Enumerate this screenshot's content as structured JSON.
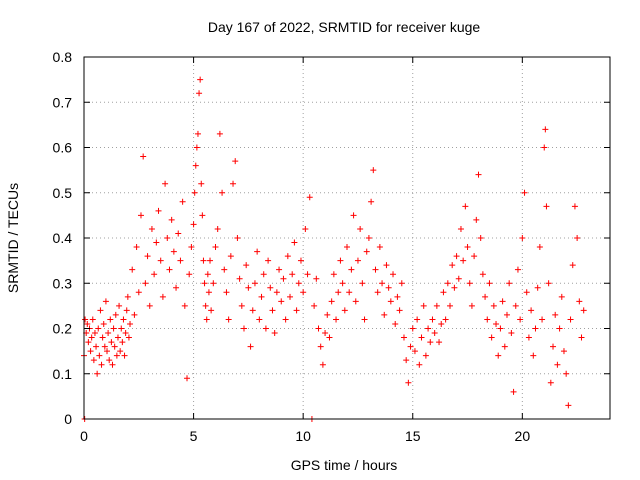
{
  "chart_data": {
    "type": "scatter",
    "title": "Day 167 of 2022, SRMTID for receiver kuge",
    "xlabel": "GPS time / hours",
    "ylabel": "SRMTID / TECUs",
    "xlim": [
      0,
      24
    ],
    "ylim": [
      0,
      0.8
    ],
    "xticks": [
      0,
      5,
      10,
      15,
      20
    ],
    "xtick_labels": [
      "0",
      "5",
      "10",
      "15",
      "20"
    ],
    "yticks": [
      0,
      0.1,
      0.2,
      0.3,
      0.4,
      0.5,
      0.6,
      0.7,
      0.8
    ],
    "ytick_labels": [
      "0",
      "0.1",
      "0.2",
      "0.3",
      "0.4",
      "0.5",
      "0.6",
      "0.7",
      "0.8"
    ],
    "grid": true,
    "marker": "+",
    "color": "#ff0000",
    "series": [
      {
        "name": "SRMTID",
        "points": [
          [
            0.0,
            0.14
          ],
          [
            0.03,
            0.0
          ],
          [
            0.05,
            0.22
          ],
          [
            0.1,
            0.19
          ],
          [
            0.15,
            0.21
          ],
          [
            0.2,
            0.17
          ],
          [
            0.25,
            0.2
          ],
          [
            0.3,
            0.15
          ],
          [
            0.35,
            0.18
          ],
          [
            0.4,
            0.22
          ],
          [
            0.45,
            0.13
          ],
          [
            0.5,
            0.19
          ],
          [
            0.55,
            0.16
          ],
          [
            0.6,
            0.1
          ],
          [
            0.65,
            0.2
          ],
          [
            0.7,
            0.14
          ],
          [
            0.75,
            0.24
          ],
          [
            0.8,
            0.12
          ],
          [
            0.85,
            0.18
          ],
          [
            0.9,
            0.21
          ],
          [
            0.95,
            0.16
          ],
          [
            1.0,
            0.26
          ],
          [
            1.05,
            0.15
          ],
          [
            1.1,
            0.19
          ],
          [
            1.15,
            0.13
          ],
          [
            1.2,
            0.22
          ],
          [
            1.25,
            0.17
          ],
          [
            1.3,
            0.12
          ],
          [
            1.35,
            0.2
          ],
          [
            1.4,
            0.16
          ],
          [
            1.45,
            0.23
          ],
          [
            1.5,
            0.14
          ],
          [
            1.55,
            0.18
          ],
          [
            1.6,
            0.25
          ],
          [
            1.65,
            0.15
          ],
          [
            1.7,
            0.2
          ],
          [
            1.75,
            0.17
          ],
          [
            1.8,
            0.22
          ],
          [
            1.85,
            0.14
          ],
          [
            1.9,
            0.19
          ],
          [
            1.95,
            0.24
          ],
          [
            2.0,
            0.27
          ],
          [
            2.05,
            0.18
          ],
          [
            2.1,
            0.21
          ],
          [
            2.2,
            0.33
          ],
          [
            2.3,
            0.23
          ],
          [
            2.4,
            0.38
          ],
          [
            2.5,
            0.28
          ],
          [
            2.6,
            0.45
          ],
          [
            2.7,
            0.58
          ],
          [
            2.8,
            0.3
          ],
          [
            2.9,
            0.36
          ],
          [
            3.0,
            0.25
          ],
          [
            3.1,
            0.42
          ],
          [
            3.2,
            0.32
          ],
          [
            3.3,
            0.39
          ],
          [
            3.4,
            0.46
          ],
          [
            3.5,
            0.35
          ],
          [
            3.6,
            0.27
          ],
          [
            3.7,
            0.52
          ],
          [
            3.8,
            0.4
          ],
          [
            3.9,
            0.33
          ],
          [
            4.0,
            0.44
          ],
          [
            4.1,
            0.37
          ],
          [
            4.2,
            0.29
          ],
          [
            4.3,
            0.41
          ],
          [
            4.4,
            0.35
          ],
          [
            4.5,
            0.48
          ],
          [
            4.6,
            0.25
          ],
          [
            4.7,
            0.09
          ],
          [
            4.8,
            0.32
          ],
          [
            4.9,
            0.38
          ],
          [
            5.0,
            0.43
          ],
          [
            5.05,
            0.5
          ],
          [
            5.1,
            0.56
          ],
          [
            5.15,
            0.6
          ],
          [
            5.2,
            0.63
          ],
          [
            5.25,
            0.72
          ],
          [
            5.3,
            0.75
          ],
          [
            5.35,
            0.52
          ],
          [
            5.4,
            0.45
          ],
          [
            5.45,
            0.35
          ],
          [
            5.5,
            0.3
          ],
          [
            5.55,
            0.25
          ],
          [
            5.6,
            0.22
          ],
          [
            5.65,
            0.32
          ],
          [
            5.7,
            0.28
          ],
          [
            5.75,
            0.35
          ],
          [
            5.8,
            0.24
          ],
          [
            5.9,
            0.3
          ],
          [
            6.0,
            0.38
          ],
          [
            6.1,
            0.42
          ],
          [
            6.2,
            0.63
          ],
          [
            6.3,
            0.5
          ],
          [
            6.4,
            0.33
          ],
          [
            6.5,
            0.28
          ],
          [
            6.6,
            0.22
          ],
          [
            6.7,
            0.36
          ],
          [
            6.8,
            0.52
          ],
          [
            6.9,
            0.57
          ],
          [
            7.0,
            0.4
          ],
          [
            7.1,
            0.31
          ],
          [
            7.2,
            0.25
          ],
          [
            7.3,
            0.2
          ],
          [
            7.4,
            0.34
          ],
          [
            7.5,
            0.29
          ],
          [
            7.6,
            0.16
          ],
          [
            7.7,
            0.24
          ],
          [
            7.8,
            0.3
          ],
          [
            7.9,
            0.37
          ],
          [
            8.0,
            0.22
          ],
          [
            8.1,
            0.27
          ],
          [
            8.2,
            0.32
          ],
          [
            8.3,
            0.2
          ],
          [
            8.4,
            0.35
          ],
          [
            8.5,
            0.29
          ],
          [
            8.6,
            0.24
          ],
          [
            8.7,
            0.19
          ],
          [
            8.8,
            0.28
          ],
          [
            8.9,
            0.33
          ],
          [
            9.0,
            0.26
          ],
          [
            9.1,
            0.31
          ],
          [
            9.2,
            0.22
          ],
          [
            9.3,
            0.36
          ],
          [
            9.4,
            0.27
          ],
          [
            9.5,
            0.32
          ],
          [
            9.6,
            0.39
          ],
          [
            9.7,
            0.24
          ],
          [
            9.8,
            0.3
          ],
          [
            9.9,
            0.35
          ],
          [
            10.0,
            0.28
          ],
          [
            10.1,
            0.42
          ],
          [
            10.2,
            0.32
          ],
          [
            10.3,
            0.49
          ],
          [
            10.4,
            0.0
          ],
          [
            10.5,
            0.25
          ],
          [
            10.6,
            0.31
          ],
          [
            10.7,
            0.2
          ],
          [
            10.8,
            0.16
          ],
          [
            10.9,
            0.12
          ],
          [
            11.0,
            0.19
          ],
          [
            11.1,
            0.23
          ],
          [
            11.2,
            0.18
          ],
          [
            11.3,
            0.26
          ],
          [
            11.4,
            0.32
          ],
          [
            11.5,
            0.22
          ],
          [
            11.6,
            0.28
          ],
          [
            11.7,
            0.35
          ],
          [
            11.8,
            0.3
          ],
          [
            11.9,
            0.24
          ],
          [
            12.0,
            0.38
          ],
          [
            12.1,
            0.28
          ],
          [
            12.2,
            0.33
          ],
          [
            12.3,
            0.45
          ],
          [
            12.4,
            0.26
          ],
          [
            12.5,
            0.35
          ],
          [
            12.6,
            0.42
          ],
          [
            12.7,
            0.3
          ],
          [
            12.8,
            0.22
          ],
          [
            12.9,
            0.37
          ],
          [
            13.0,
            0.4
          ],
          [
            13.1,
            0.48
          ],
          [
            13.2,
            0.55
          ],
          [
            13.3,
            0.33
          ],
          [
            13.4,
            0.28
          ],
          [
            13.5,
            0.38
          ],
          [
            13.6,
            0.3
          ],
          [
            13.7,
            0.23
          ],
          [
            13.8,
            0.34
          ],
          [
            13.9,
            0.29
          ],
          [
            14.0,
            0.26
          ],
          [
            14.1,
            0.32
          ],
          [
            14.2,
            0.21
          ],
          [
            14.3,
            0.27
          ],
          [
            14.4,
            0.24
          ],
          [
            14.5,
            0.3
          ],
          [
            14.6,
            0.18
          ],
          [
            14.7,
            0.13
          ],
          [
            14.8,
            0.08
          ],
          [
            14.9,
            0.16
          ],
          [
            15.0,
            0.2
          ],
          [
            15.1,
            0.15
          ],
          [
            15.2,
            0.22
          ],
          [
            15.3,
            0.12
          ],
          [
            15.4,
            0.18
          ],
          [
            15.5,
            0.25
          ],
          [
            15.6,
            0.14
          ],
          [
            15.7,
            0.2
          ],
          [
            15.8,
            0.17
          ],
          [
            15.9,
            0.22
          ],
          [
            16.0,
            0.19
          ],
          [
            16.1,
            0.25
          ],
          [
            16.2,
            0.17
          ],
          [
            16.3,
            0.21
          ],
          [
            16.4,
            0.28
          ],
          [
            16.5,
            0.22
          ],
          [
            16.6,
            0.3
          ],
          [
            16.7,
            0.25
          ],
          [
            16.8,
            0.34
          ],
          [
            16.9,
            0.29
          ],
          [
            17.0,
            0.36
          ],
          [
            17.1,
            0.31
          ],
          [
            17.2,
            0.42
          ],
          [
            17.3,
            0.35
          ],
          [
            17.4,
            0.47
          ],
          [
            17.5,
            0.38
          ],
          [
            17.6,
            0.3
          ],
          [
            17.7,
            0.25
          ],
          [
            17.8,
            0.36
          ],
          [
            17.9,
            0.44
          ],
          [
            18.0,
            0.54
          ],
          [
            18.1,
            0.4
          ],
          [
            18.2,
            0.32
          ],
          [
            18.3,
            0.27
          ],
          [
            18.4,
            0.22
          ],
          [
            18.5,
            0.3
          ],
          [
            18.6,
            0.18
          ],
          [
            18.7,
            0.25
          ],
          [
            18.8,
            0.21
          ],
          [
            18.9,
            0.14
          ],
          [
            19.0,
            0.2
          ],
          [
            19.1,
            0.26
          ],
          [
            19.2,
            0.16
          ],
          [
            19.3,
            0.23
          ],
          [
            19.4,
            0.3
          ],
          [
            19.5,
            0.19
          ],
          [
            19.6,
            0.06
          ],
          [
            19.7,
            0.25
          ],
          [
            19.8,
            0.33
          ],
          [
            19.9,
            0.22
          ],
          [
            20.0,
            0.4
          ],
          [
            20.1,
            0.5
          ],
          [
            20.2,
            0.28
          ],
          [
            20.3,
            0.18
          ],
          [
            20.4,
            0.24
          ],
          [
            20.5,
            0.14
          ],
          [
            20.6,
            0.2
          ],
          [
            20.7,
            0.29
          ],
          [
            20.8,
            0.38
          ],
          [
            20.9,
            0.22
          ],
          [
            21.0,
            0.6
          ],
          [
            21.05,
            0.64
          ],
          [
            21.1,
            0.47
          ],
          [
            21.2,
            0.3
          ],
          [
            21.3,
            0.08
          ],
          [
            21.4,
            0.16
          ],
          [
            21.5,
            0.23
          ],
          [
            21.6,
            0.12
          ],
          [
            21.7,
            0.2
          ],
          [
            21.8,
            0.27
          ],
          [
            21.9,
            0.15
          ],
          [
            22.0,
            0.1
          ],
          [
            22.1,
            0.03
          ],
          [
            22.2,
            0.22
          ],
          [
            22.3,
            0.34
          ],
          [
            22.4,
            0.47
          ],
          [
            22.5,
            0.4
          ],
          [
            22.6,
            0.26
          ],
          [
            22.7,
            0.18
          ],
          [
            22.8,
            0.24
          ]
        ]
      }
    ]
  }
}
